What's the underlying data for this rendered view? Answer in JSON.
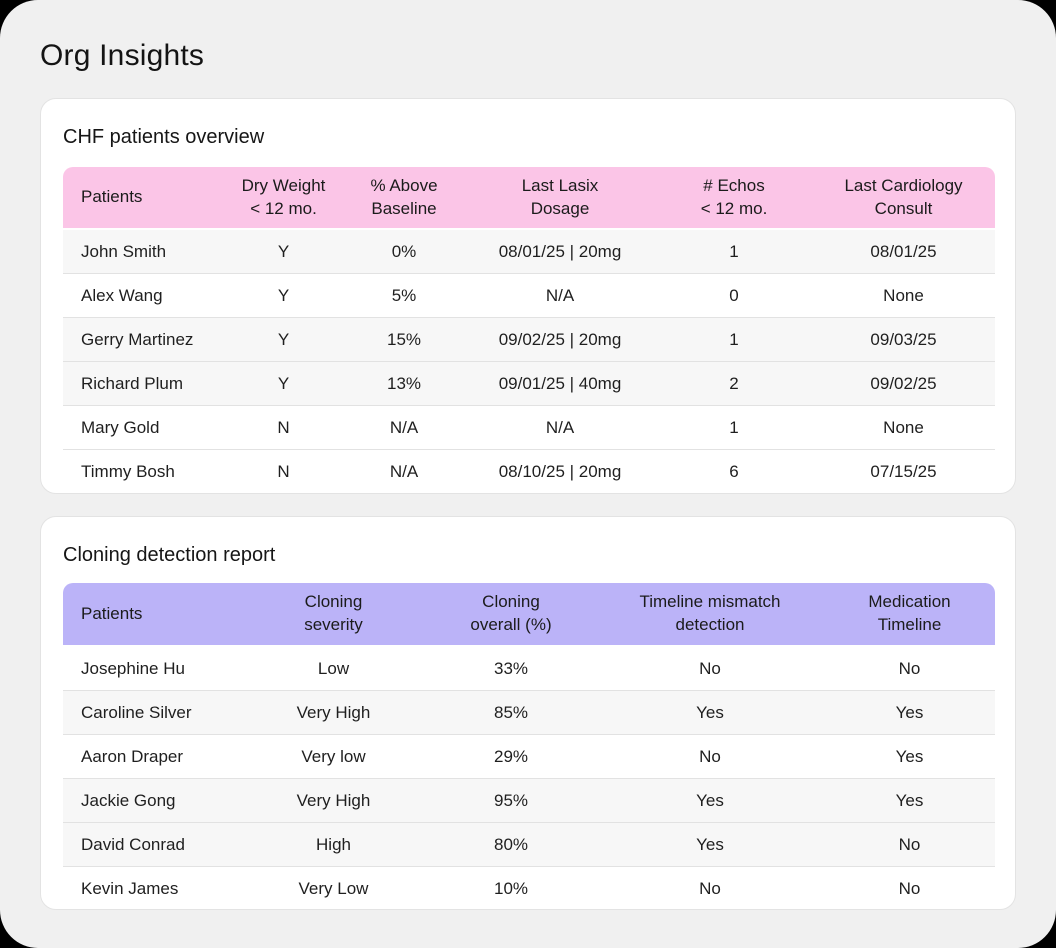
{
  "page": {
    "title": "Org Insights"
  },
  "colors": {
    "outer_bg": "#000000",
    "page_bg": "#F0F0F0",
    "card_bg": "#FFFFFF",
    "card_border": "#E3E3E3",
    "chf_header": "#FBC5E7",
    "cloning_header": "#BBB3F8",
    "row_shaded": "#F7F7F7",
    "row_divider": "#E2E2E2",
    "text": "#1B1B1B"
  },
  "cards": [
    {
      "title": "CHF patients overview",
      "header_color": "#FBC5E7",
      "columns": [
        "Patients",
        "Dry Weight\n< 12 mo.",
        "% Above\nBaseline",
        "Last Lasix\nDosage",
        "# Echos\n< 12 mo.",
        "Last Cardiology\nConsult"
      ],
      "rows": [
        {
          "shaded": true,
          "cells": [
            "John Smith",
            "Y",
            "0%",
            "08/01/25 | 20mg",
            "1",
            "08/01/25"
          ]
        },
        {
          "shaded": false,
          "cells": [
            "Alex Wang",
            "Y",
            "5%",
            "N/A",
            "0",
            "None"
          ]
        },
        {
          "shaded": true,
          "cells": [
            "Gerry Martinez",
            "Y",
            "15%",
            "09/02/25 | 20mg",
            "1",
            "09/03/25"
          ]
        },
        {
          "shaded": true,
          "cells": [
            "Richard Plum",
            "Y",
            "13%",
            "09/01/25 | 40mg",
            "2",
            "09/02/25"
          ]
        },
        {
          "shaded": false,
          "cells": [
            "Mary Gold",
            "N",
            "N/A",
            "N/A",
            "1",
            "None"
          ]
        },
        {
          "shaded": false,
          "cells": [
            "Timmy Bosh",
            "N",
            "N/A",
            "08/10/25 | 20mg",
            "6",
            "07/15/25"
          ]
        }
      ]
    },
    {
      "title": "Cloning detection report",
      "header_color": "#BBB3F8",
      "columns": [
        "Patients",
        "Cloning\nseverity",
        "Cloning\noverall (%)",
        "Timeline mismatch\ndetection",
        "Medication\nTimeline"
      ],
      "rows": [
        {
          "shaded": false,
          "cells": [
            "Josephine Hu",
            "Low",
            "33%",
            "No",
            "No"
          ]
        },
        {
          "shaded": true,
          "cells": [
            "Caroline Silver",
            "Very High",
            "85%",
            "Yes",
            "Yes"
          ]
        },
        {
          "shaded": false,
          "cells": [
            "Aaron Draper",
            "Very low",
            "29%",
            "No",
            "Yes"
          ]
        },
        {
          "shaded": true,
          "cells": [
            "Jackie Gong",
            "Very High",
            "95%",
            "Yes",
            "Yes"
          ]
        },
        {
          "shaded": true,
          "cells": [
            "David Conrad",
            "High",
            "80%",
            "Yes",
            "No"
          ]
        },
        {
          "shaded": false,
          "cells": [
            "Kevin James",
            "Very Low",
            "10%",
            "No",
            "No"
          ]
        }
      ]
    }
  ]
}
